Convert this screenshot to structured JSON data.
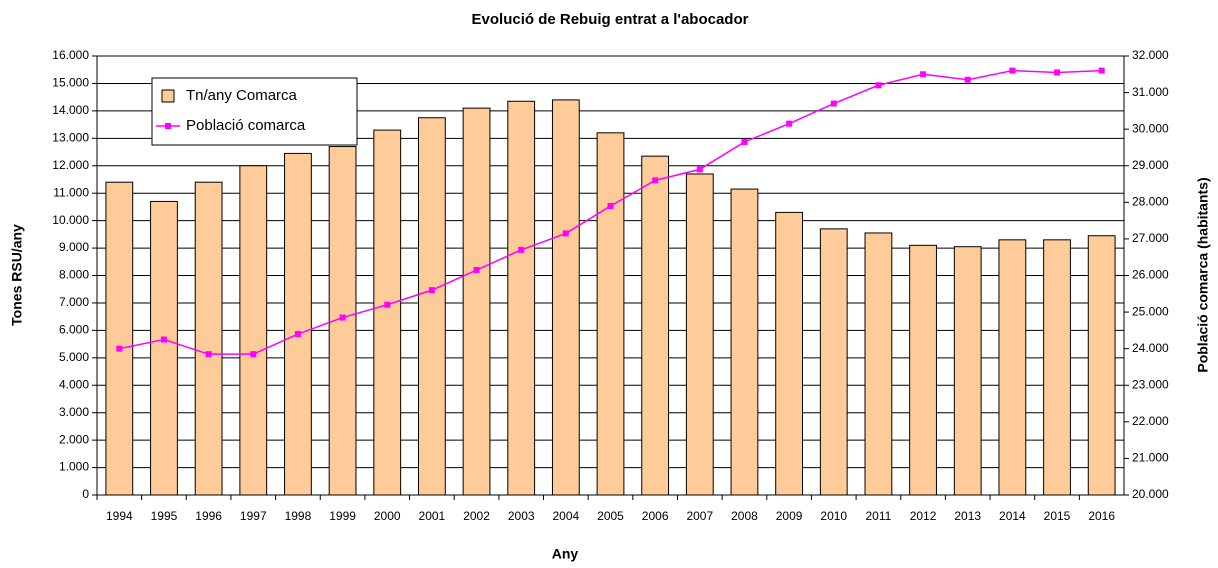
{
  "chart_data": {
    "type": "bar",
    "title": "Evolució de Rebuig entrat a l'abocador",
    "x_label": "Any",
    "y_label": "Tones RSU/any",
    "y2_label": "Població comarca (habitants)",
    "categories": [
      "1994",
      "1995",
      "1996",
      "1997",
      "1998",
      "1999",
      "2000",
      "2001",
      "2002",
      "2003",
      "2004",
      "2005",
      "2006",
      "2007",
      "2008",
      "2009",
      "2010",
      "2011",
      "2012",
      "2013",
      "2014",
      "2015",
      "2016"
    ],
    "series": [
      {
        "name": "Tn/any Comarca",
        "type": "bar",
        "color": "#FFCC99",
        "values": [
          11400,
          10700,
          11400,
          12000,
          12450,
          12700,
          13300,
          13750,
          14100,
          14350,
          14400,
          13200,
          12350,
          11700,
          11150,
          10300,
          9700,
          9550,
          9100,
          9050,
          9300,
          9300,
          9450
        ]
      },
      {
        "name": "Població comarca",
        "type": "line",
        "axis": "y2",
        "color": "#FF00FF",
        "values": [
          24000,
          24250,
          23850,
          23850,
          24400,
          24850,
          25200,
          25600,
          26150,
          26700,
          27150,
          27900,
          28600,
          28900,
          29650,
          30150,
          30700,
          31200,
          31500,
          31350,
          31600,
          31550,
          31600
        ]
      }
    ],
    "ylim": [
      0,
      16000
    ],
    "yticks": [
      0,
      {
        "value": 1000,
        "label": "1.000"
      },
      {
        "value": 2000,
        "label": "2.000"
      },
      {
        "value": 3000,
        "label": "3.000"
      },
      {
        "value": 4000,
        "label": "4.000"
      },
      {
        "value": 5000,
        "label": "5.000"
      },
      {
        "value": 6000,
        "label": "6.000"
      },
      {
        "value": 7000,
        "label": "7.000"
      },
      {
        "value": 8000,
        "label": "8.000"
      },
      {
        "value": 9000,
        "label": "9.000"
      },
      {
        "value": 10000,
        "label": "10.000"
      },
      {
        "value": 11000,
        "label": "11.000"
      },
      {
        "value": 12000,
        "label": "12.000"
      },
      {
        "value": 13000,
        "label": "13.000"
      },
      {
        "value": 14000,
        "label": "14.000"
      },
      {
        "value": 15000,
        "label": "15.000"
      },
      {
        "value": 16000,
        "label": "16.000"
      }
    ],
    "y2lim": [
      20000,
      32000
    ],
    "y2ticks": [
      {
        "value": 20000,
        "label": "20.000"
      },
      {
        "value": 21000,
        "label": "21.000"
      },
      {
        "value": 22000,
        "label": "22.000"
      },
      {
        "value": 23000,
        "label": "23.000"
      },
      {
        "value": 24000,
        "label": "24.000"
      },
      {
        "value": 25000,
        "label": "25.000"
      },
      {
        "value": 26000,
        "label": "26.000"
      },
      {
        "value": 27000,
        "label": "27.000"
      },
      {
        "value": 28000,
        "label": "28.000"
      },
      {
        "value": 29000,
        "label": "29.000"
      },
      {
        "value": 30000,
        "label": "30.000"
      },
      {
        "value": 31000,
        "label": "31.000"
      },
      {
        "value": 32000,
        "label": "32.000"
      }
    ],
    "grid": true,
    "legend": "upper left"
  }
}
